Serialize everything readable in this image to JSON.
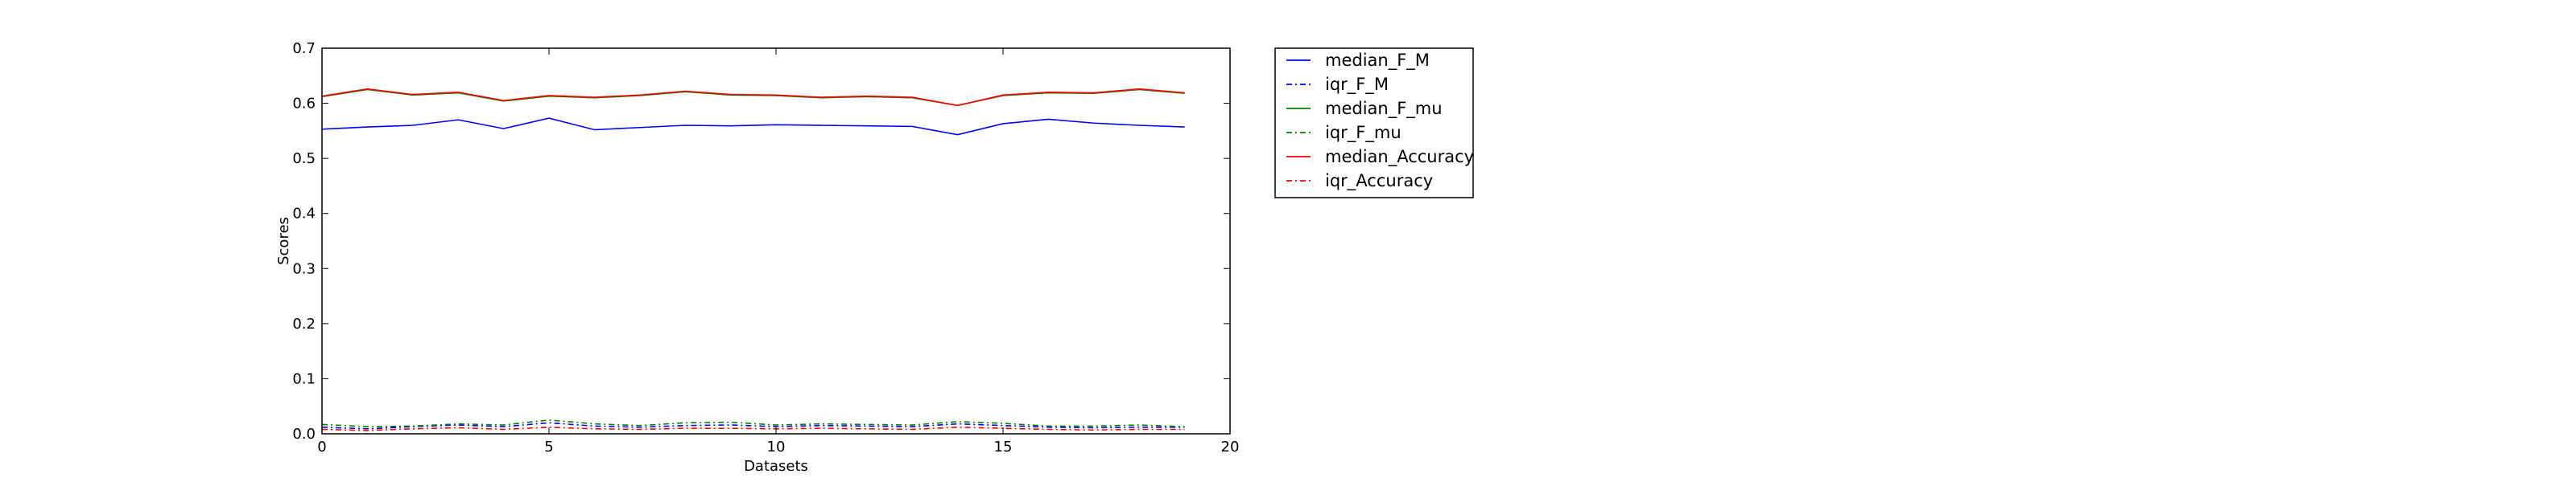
{
  "chart_data": {
    "type": "line",
    "xlabel": "Datasets",
    "ylabel": "Scores",
    "xlim": [
      0,
      20
    ],
    "ylim": [
      0,
      0.7
    ],
    "xticks": [
      0,
      5,
      10,
      15,
      20
    ],
    "yticks": [
      0.0,
      0.1,
      0.2,
      0.3,
      0.4,
      0.5,
      0.6,
      0.7
    ],
    "xtick_labels": [
      "0",
      "5",
      "10",
      "15",
      "20"
    ],
    "ytick_labels": [
      "0.0",
      "0.1",
      "0.2",
      "0.3",
      "0.4",
      "0.5",
      "0.6",
      "0.7"
    ],
    "grid": false,
    "legend_position": "outside-right-top",
    "x": [
      0,
      1,
      2,
      3,
      4,
      5,
      6,
      7,
      8,
      9,
      10,
      11,
      12,
      13,
      14,
      15,
      16,
      17,
      18,
      19
    ],
    "series": [
      {
        "name": "median_F_M",
        "color": "#0000ff",
        "style": "solid",
        "values": [
          0.553,
          0.557,
          0.56,
          0.57,
          0.554,
          0.573,
          0.552,
          0.556,
          0.56,
          0.559,
          0.561,
          0.56,
          0.559,
          0.558,
          0.543,
          0.563,
          0.571,
          0.564,
          0.56,
          0.557
        ]
      },
      {
        "name": "iqr_F_M",
        "color": "#0000ff",
        "style": "dashdot",
        "values": [
          0.012,
          0.009,
          0.013,
          0.016,
          0.013,
          0.02,
          0.014,
          0.012,
          0.015,
          0.016,
          0.013,
          0.015,
          0.014,
          0.013,
          0.018,
          0.015,
          0.012,
          0.011,
          0.012,
          0.012
        ]
      },
      {
        "name": "median_F_mu",
        "color": "#008000",
        "style": "solid",
        "values": [
          0.612,
          0.625,
          0.615,
          0.619,
          0.604,
          0.613,
          0.61,
          0.614,
          0.621,
          0.615,
          0.614,
          0.61,
          0.612,
          0.61,
          0.596,
          0.614,
          0.619,
          0.618,
          0.625,
          0.618
        ]
      },
      {
        "name": "iqr_F_mu",
        "color": "#008000",
        "style": "dashdot",
        "values": [
          0.017,
          0.013,
          0.014,
          0.018,
          0.016,
          0.025,
          0.018,
          0.015,
          0.02,
          0.021,
          0.016,
          0.018,
          0.017,
          0.016,
          0.022,
          0.019,
          0.014,
          0.014,
          0.016,
          0.013
        ]
      },
      {
        "name": "median_Accuracy",
        "color": "#ff0000",
        "style": "solid",
        "values": [
          0.613,
          0.626,
          0.616,
          0.62,
          0.605,
          0.614,
          0.611,
          0.615,
          0.622,
          0.616,
          0.615,
          0.611,
          0.613,
          0.611,
          0.596,
          0.615,
          0.62,
          0.619,
          0.626,
          0.619
        ]
      },
      {
        "name": "iqr_Accuracy",
        "color": "#ff0000",
        "style": "dashdot",
        "values": [
          0.008,
          0.006,
          0.009,
          0.011,
          0.008,
          0.012,
          0.009,
          0.008,
          0.01,
          0.01,
          0.009,
          0.01,
          0.009,
          0.008,
          0.012,
          0.01,
          0.008,
          0.007,
          0.008,
          0.008
        ]
      }
    ]
  }
}
